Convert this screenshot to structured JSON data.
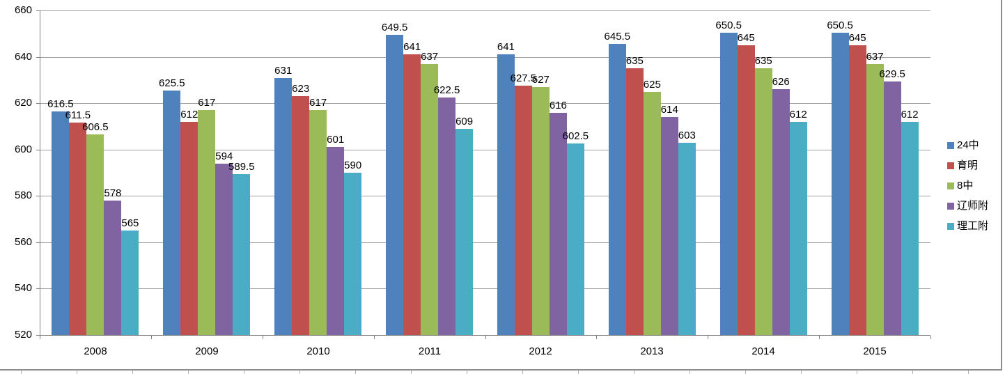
{
  "chart_data": {
    "type": "bar",
    "title": "",
    "xlabel": "",
    "ylabel": "",
    "categories": [
      "2008",
      "2009",
      "2010",
      "2011",
      "2012",
      "2013",
      "2014",
      "2015"
    ],
    "series": [
      {
        "name": "24中",
        "color": "#4F81BD",
        "values": [
          616.5,
          625.5,
          631,
          649.5,
          641,
          645.5,
          650.5,
          650.5
        ]
      },
      {
        "name": "育明",
        "color": "#C0504D",
        "values": [
          611.5,
          612,
          623,
          641,
          627.5,
          635,
          645,
          645
        ]
      },
      {
        "name": "8中",
        "color": "#9BBB59",
        "values": [
          606.5,
          617,
          617,
          637,
          627,
          625,
          635,
          637
        ]
      },
      {
        "name": "辽师附",
        "color": "#8064A2",
        "values": [
          578,
          594,
          601,
          622.5,
          616,
          614,
          626,
          629.5
        ]
      },
      {
        "name": "理工附",
        "color": "#4BACC6",
        "values": [
          565,
          589.5,
          590,
          609,
          602.5,
          603,
          612,
          612
        ]
      }
    ],
    "ylim": [
      520,
      660
    ],
    "yticks": [
      520,
      540,
      560,
      580,
      600,
      620,
      640,
      660
    ],
    "grid": true,
    "data_labels": true,
    "legend_position": "right",
    "colors": {
      "gridline": "#9d9d9d",
      "axis": "#7f7f7f",
      "text": "#000000",
      "background": "#ffffff"
    }
  }
}
